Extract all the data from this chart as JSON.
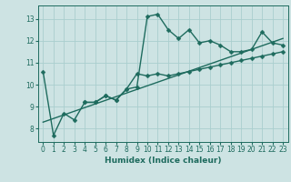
{
  "xlabel": "Humidex (Indice chaleur)",
  "ylabel": "",
  "xlim": [
    -0.5,
    23.5
  ],
  "ylim": [
    7.4,
    13.6
  ],
  "xticks": [
    0,
    1,
    2,
    3,
    4,
    5,
    6,
    7,
    8,
    9,
    10,
    11,
    12,
    13,
    14,
    15,
    16,
    17,
    18,
    19,
    20,
    21,
    22,
    23
  ],
  "yticks": [
    8,
    9,
    10,
    11,
    12,
    13
  ],
  "bg_color": "#cde3e3",
  "line_color": "#1e6b5e",
  "curve1_x": [
    0,
    1,
    2,
    3,
    4,
    5,
    6,
    7,
    8,
    9,
    10,
    11,
    12,
    13,
    14,
    15,
    16,
    17,
    18,
    19,
    20,
    21,
    22,
    23
  ],
  "curve1_y": [
    10.6,
    7.7,
    8.7,
    8.4,
    9.2,
    9.2,
    9.5,
    9.3,
    9.8,
    9.9,
    13.1,
    13.2,
    12.5,
    12.1,
    12.5,
    11.9,
    12.0,
    11.8,
    11.5,
    11.5,
    11.6,
    12.4,
    11.9,
    11.8
  ],
  "curve2_x": [
    4,
    5,
    6,
    7,
    8,
    9,
    10,
    11,
    12,
    13,
    14,
    15,
    16,
    17,
    18,
    19,
    20,
    21,
    22,
    23
  ],
  "curve2_y": [
    9.2,
    9.2,
    9.5,
    9.3,
    9.8,
    10.5,
    10.4,
    10.5,
    10.4,
    10.5,
    10.6,
    10.7,
    10.8,
    10.9,
    11.0,
    11.1,
    11.2,
    11.3,
    11.4,
    11.5
  ],
  "trend_x": [
    0,
    23
  ],
  "trend_y": [
    8.3,
    12.1
  ],
  "grid_color": "#aacece",
  "marker": "D",
  "markersize": 2.5,
  "linewidth": 1.0
}
